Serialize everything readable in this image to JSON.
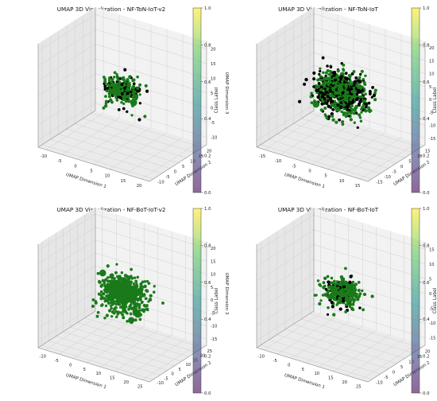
{
  "chart_data": [
    {
      "type": "scatter",
      "projection": "3d",
      "title": "UMAP 3D Visualization - NF-ToN-IoT-v2",
      "xlabel": "UMAP Dimension 1",
      "ylabel": "UMAP Dimension 2",
      "zlabel": "UMAP Dimension 3",
      "xticks": [
        "-10",
        "-5",
        "0",
        "5",
        "10",
        "15",
        "20"
      ],
      "yticks": [
        "-10",
        "-5",
        "0",
        "5",
        "10",
        "15",
        "20"
      ],
      "zticks": [
        "-10",
        "-5",
        "0",
        "5",
        "10",
        "15",
        "20"
      ],
      "xlim": [
        -12,
        22
      ],
      "ylim": [
        -12,
        22
      ],
      "zlim": [
        -12,
        22
      ],
      "point_count_estimate": 260,
      "series": [
        {
          "class": 0,
          "color": "#1a7a1a",
          "share": 0.72
        },
        {
          "class": 1,
          "color": "#000000",
          "share": 0.28
        }
      ],
      "colorbar": {
        "label": "Class Label",
        "ticks": [
          "0.0",
          "0.2",
          "0.4",
          "0.6",
          "0.8",
          "1.0"
        ],
        "colormap": "viridis",
        "alpha": 0.6
      }
    },
    {
      "type": "scatter",
      "projection": "3d",
      "title": "UMAP 3D Visualization - NF-ToN-IoT",
      "xlabel": "UMAP Dimension 1",
      "ylabel": "UMAP Dimension 2",
      "zlabel": "UMAP Dimension 3",
      "xticks": [
        "-15",
        "-10",
        "-5",
        "0",
        "5",
        "10",
        "15"
      ],
      "yticks": [
        "-15",
        "-10",
        "-5",
        "0",
        "5",
        "10",
        "15"
      ],
      "zticks": [
        "-15",
        "-10",
        "-5",
        "0",
        "5",
        "10",
        "15",
        "20"
      ],
      "xlim": [
        -17,
        17
      ],
      "ylim": [
        -17,
        17
      ],
      "zlim": [
        -17,
        22
      ],
      "point_count_estimate": 900,
      "series": [
        {
          "class": 0,
          "color": "#1a7a1a",
          "share": 0.6
        },
        {
          "class": 1,
          "color": "#000000",
          "share": 0.4
        }
      ],
      "colorbar": {
        "label": "Class Label",
        "ticks": [
          "0.0",
          "0.2",
          "0.4",
          "0.6",
          "0.8",
          "1.0"
        ],
        "colormap": "viridis",
        "alpha": 0.6
      }
    },
    {
      "type": "scatter",
      "projection": "3d",
      "title": "UMAP 3D Visualization - NF-BoT-IoT-v2",
      "xlabel": "UMAP Dimension 1",
      "ylabel": "UMAP Dimension 2",
      "zlabel": "UMAP Dimension 3",
      "xticks": [
        "-10",
        "-5",
        "0",
        "5",
        "10",
        "15",
        "20",
        "25"
      ],
      "yticks": [
        "-10",
        "-5",
        "0",
        "5",
        "10",
        "15",
        "20",
        "25"
      ],
      "zticks": [
        "-15",
        "-10",
        "-5",
        "0",
        "5",
        "10",
        "15",
        "20"
      ],
      "xlim": [
        -12,
        27
      ],
      "ylim": [
        -12,
        27
      ],
      "zlim": [
        -17,
        22
      ],
      "point_count_estimate": 600,
      "series": [
        {
          "class": 0,
          "color": "#1a7a1a",
          "share": 1.0
        }
      ],
      "colorbar": {
        "label": "Class Label",
        "ticks": [
          "0.0",
          "0.2",
          "0.4",
          "0.6",
          "0.8",
          "1.0"
        ],
        "colormap": "viridis",
        "alpha": 0.6
      }
    },
    {
      "type": "scatter",
      "projection": "3d",
      "title": "UMAP 3D Visualization - NF-BoT-IoT",
      "xlabel": "UMAP Dimension 1",
      "ylabel": "UMAP Dimension 2",
      "zlabel": "UMAP Dimension 3",
      "xticks": [
        "-10",
        "-5",
        "0",
        "5",
        "10",
        "15",
        "20",
        "25"
      ],
      "yticks": [
        "-10",
        "-5",
        "0",
        "5",
        "10",
        "15",
        "20"
      ],
      "zticks": [
        "-15",
        "-10",
        "-5",
        "0",
        "5",
        "10",
        "15"
      ],
      "xlim": [
        -12,
        27
      ],
      "ylim": [
        -12,
        22
      ],
      "zlim": [
        -17,
        18
      ],
      "point_count_estimate": 430,
      "series": [
        {
          "class": 0,
          "color": "#1a7a1a",
          "share": 0.88
        },
        {
          "class": 1,
          "color": "#000000",
          "share": 0.12
        }
      ],
      "colorbar": {
        "label": "Class Label",
        "ticks": [
          "0.0",
          "0.2",
          "0.4",
          "0.6",
          "0.8",
          "1.0"
        ],
        "colormap": "viridis",
        "alpha": 0.6
      }
    }
  ]
}
